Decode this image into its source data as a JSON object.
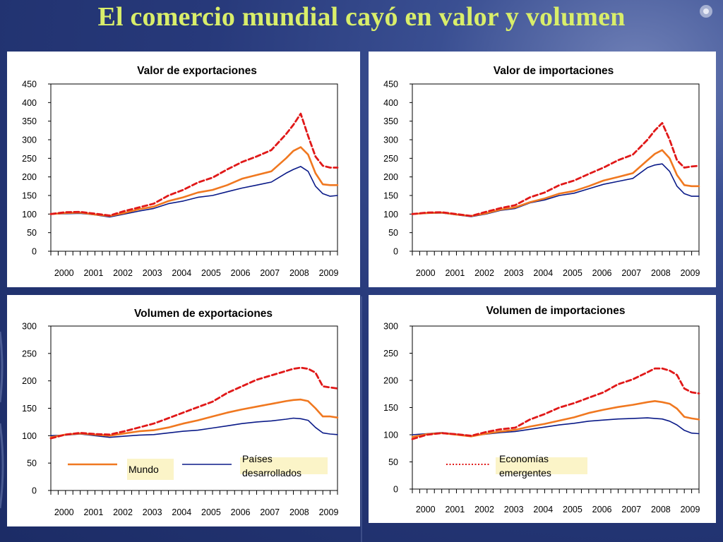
{
  "page": {
    "title": "El comercio mundial cayó en valor y volumen",
    "colors": {
      "background": "#27397a",
      "title": "#d9ee6a",
      "mundo": "#f07820",
      "desarrollados": "#0a1a88",
      "emergentes": "#e01818",
      "legend_box": "#fbf4c8"
    }
  },
  "legend": {
    "mundo": "Mundo",
    "desarrollados_1": "Países",
    "desarrollados_2": "desarrollados",
    "emergentes_1": "Economías",
    "emergentes_2": "emergentes"
  },
  "chart_data": [
    {
      "type": "line",
      "title": "Valor de exportaciones",
      "ylim": [
        0,
        450
      ],
      "yticks": [
        0,
        50,
        100,
        150,
        200,
        250,
        300,
        350,
        400,
        450
      ],
      "xticks": [
        "2000",
        "2001",
        "2002",
        "2003",
        "2004",
        "2005",
        "2006",
        "2007",
        "2008",
        "2009"
      ],
      "xrange": [
        2000.0,
        2009.75
      ],
      "grid": false,
      "series": [
        {
          "name": "Mundo",
          "x": [
            2000.0,
            2000.5,
            2001.0,
            2001.5,
            2002.0,
            2002.5,
            2003.0,
            2003.5,
            2004.0,
            2004.5,
            2005.0,
            2005.5,
            2006.0,
            2006.5,
            2007.0,
            2007.5,
            2008.0,
            2008.25,
            2008.5,
            2008.75,
            2009.0,
            2009.25,
            2009.5,
            2009.75
          ],
          "values": [
            100,
            103,
            104,
            99,
            95,
            103,
            113,
            120,
            135,
            145,
            158,
            165,
            178,
            195,
            205,
            215,
            250,
            270,
            280,
            260,
            210,
            180,
            178,
            178
          ]
        },
        {
          "name": "Países desarrollados",
          "x": [
            2000.0,
            2000.5,
            2001.0,
            2001.5,
            2002.0,
            2002.5,
            2003.0,
            2003.5,
            2004.0,
            2004.5,
            2005.0,
            2005.5,
            2006.0,
            2006.5,
            2007.0,
            2007.5,
            2008.0,
            2008.25,
            2008.5,
            2008.75,
            2009.0,
            2009.25,
            2009.5,
            2009.75
          ],
          "values": [
            100,
            101,
            102,
            98,
            92,
            100,
            108,
            115,
            128,
            135,
            145,
            150,
            160,
            170,
            178,
            186,
            210,
            220,
            228,
            215,
            175,
            155,
            148,
            150
          ]
        },
        {
          "name": "Economías emergentes",
          "x": [
            2000.0,
            2000.5,
            2001.0,
            2001.5,
            2002.0,
            2002.5,
            2003.0,
            2003.5,
            2004.0,
            2004.5,
            2005.0,
            2005.5,
            2006.0,
            2006.5,
            2007.0,
            2007.5,
            2008.0,
            2008.25,
            2008.5,
            2008.75,
            2009.0,
            2009.25,
            2009.5,
            2009.75
          ],
          "values": [
            100,
            105,
            106,
            101,
            96,
            108,
            118,
            128,
            150,
            165,
            185,
            198,
            220,
            240,
            255,
            272,
            315,
            340,
            370,
            310,
            255,
            230,
            225,
            225
          ]
        }
      ]
    },
    {
      "type": "line",
      "title": "Valor de importaciones",
      "ylim": [
        0,
        450
      ],
      "yticks": [
        0,
        50,
        100,
        150,
        200,
        250,
        300,
        350,
        400,
        450
      ],
      "xticks": [
        "2000",
        "2001",
        "2002",
        "2003",
        "2004",
        "2005",
        "2006",
        "2007",
        "2008",
        "2009"
      ],
      "xrange": [
        2000.0,
        2009.75
      ],
      "grid": false,
      "series": [
        {
          "name": "Mundo",
          "x": [
            2000.0,
            2000.5,
            2001.0,
            2001.5,
            2002.0,
            2002.5,
            2003.0,
            2003.5,
            2004.0,
            2004.5,
            2005.0,
            2005.5,
            2006.0,
            2006.5,
            2007.0,
            2007.5,
            2008.0,
            2008.25,
            2008.5,
            2008.75,
            2009.0,
            2009.25,
            2009.5,
            2009.75
          ],
          "values": [
            100,
            103,
            104,
            99,
            95,
            102,
            112,
            118,
            132,
            142,
            155,
            162,
            175,
            190,
            200,
            210,
            245,
            262,
            272,
            250,
            205,
            178,
            175,
            175
          ]
        },
        {
          "name": "Países desarrollados",
          "x": [
            2000.0,
            2000.5,
            2001.0,
            2001.5,
            2002.0,
            2002.5,
            2003.0,
            2003.5,
            2004.0,
            2004.5,
            2005.0,
            2005.5,
            2006.0,
            2006.5,
            2007.0,
            2007.5,
            2008.0,
            2008.25,
            2008.5,
            2008.75,
            2009.0,
            2009.25,
            2009.5,
            2009.75
          ],
          "values": [
            100,
            102,
            103,
            98,
            93,
            100,
            110,
            115,
            130,
            138,
            150,
            156,
            168,
            180,
            188,
            196,
            225,
            232,
            235,
            215,
            175,
            155,
            148,
            148
          ]
        },
        {
          "name": "Economías emergentes",
          "x": [
            2000.0,
            2000.5,
            2001.0,
            2001.5,
            2002.0,
            2002.5,
            2003.0,
            2003.5,
            2004.0,
            2004.5,
            2005.0,
            2005.5,
            2006.0,
            2006.5,
            2007.0,
            2007.5,
            2008.0,
            2008.25,
            2008.5,
            2008.75,
            2009.0,
            2009.25,
            2009.5,
            2009.75
          ],
          "values": [
            100,
            104,
            105,
            100,
            95,
            106,
            116,
            124,
            145,
            158,
            178,
            190,
            208,
            225,
            245,
            260,
            300,
            325,
            345,
            300,
            245,
            225,
            228,
            230
          ]
        }
      ]
    },
    {
      "type": "line",
      "title": "Volumen de exportaciones",
      "ylim": [
        0,
        300
      ],
      "yticks": [
        0,
        50,
        100,
        150,
        200,
        250,
        300
      ],
      "xticks": [
        "2000",
        "2001",
        "2002",
        "2003",
        "2004",
        "2005",
        "2006",
        "2007",
        "2008",
        "2009"
      ],
      "xrange": [
        2000.0,
        2009.75
      ],
      "grid": false,
      "series": [
        {
          "name": "Mundo",
          "x": [
            2000.0,
            2000.5,
            2001.0,
            2001.5,
            2002.0,
            2002.5,
            2003.0,
            2003.5,
            2004.0,
            2004.5,
            2005.0,
            2005.5,
            2006.0,
            2006.5,
            2007.0,
            2007.5,
            2008.0,
            2008.25,
            2008.5,
            2008.75,
            2009.0,
            2009.25,
            2009.5,
            2009.75
          ],
          "values": [
            97,
            102,
            104,
            102,
            100,
            104,
            108,
            110,
            115,
            122,
            128,
            135,
            142,
            148,
            153,
            158,
            163,
            165,
            166,
            163,
            150,
            135,
            135,
            133
          ]
        },
        {
          "name": "Países desarrollados",
          "x": [
            2000.0,
            2000.5,
            2001.0,
            2001.5,
            2002.0,
            2002.5,
            2003.0,
            2003.5,
            2004.0,
            2004.5,
            2005.0,
            2005.5,
            2006.0,
            2006.5,
            2007.0,
            2007.5,
            2008.0,
            2008.25,
            2008.5,
            2008.75,
            2009.0,
            2009.25,
            2009.5,
            2009.75
          ],
          "values": [
            100,
            101,
            103,
            100,
            97,
            99,
            101,
            102,
            105,
            108,
            110,
            114,
            118,
            122,
            125,
            127,
            130,
            132,
            131,
            128,
            115,
            105,
            103,
            102
          ]
        },
        {
          "name": "Economías emergentes",
          "x": [
            2000.0,
            2000.5,
            2001.0,
            2001.5,
            2002.0,
            2002.5,
            2003.0,
            2003.5,
            2004.0,
            2004.5,
            2005.0,
            2005.5,
            2006.0,
            2006.5,
            2007.0,
            2007.5,
            2008.0,
            2008.25,
            2008.5,
            2008.75,
            2009.0,
            2009.25,
            2009.5,
            2009.75
          ],
          "values": [
            95,
            102,
            105,
            103,
            102,
            108,
            115,
            122,
            132,
            142,
            152,
            162,
            178,
            190,
            202,
            210,
            218,
            222,
            224,
            222,
            215,
            190,
            188,
            186
          ]
        }
      ]
    },
    {
      "type": "line",
      "title": "Volumen de importaciones",
      "ylim": [
        0,
        300
      ],
      "yticks": [
        0,
        50,
        100,
        150,
        200,
        250,
        300
      ],
      "xticks": [
        "2000",
        "2001",
        "2002",
        "2003",
        "2004",
        "2005",
        "2006",
        "2007",
        "2008",
        "2009"
      ],
      "xrange": [
        2000.0,
        2009.75
      ],
      "grid": false,
      "series": [
        {
          "name": "Mundo",
          "x": [
            2000.0,
            2000.5,
            2001.0,
            2001.5,
            2002.0,
            2002.5,
            2003.0,
            2003.5,
            2004.0,
            2004.5,
            2005.0,
            2005.5,
            2006.0,
            2006.5,
            2007.0,
            2007.5,
            2008.0,
            2008.25,
            2008.5,
            2008.75,
            2009.0,
            2009.25,
            2009.5,
            2009.75
          ],
          "values": [
            96,
            101,
            103,
            100,
            97,
            102,
            106,
            109,
            115,
            120,
            126,
            132,
            140,
            146,
            151,
            155,
            160,
            162,
            160,
            157,
            148,
            133,
            130,
            128
          ]
        },
        {
          "name": "Países desarrollados",
          "x": [
            2000.0,
            2000.5,
            2001.0,
            2001.5,
            2002.0,
            2002.5,
            2003.0,
            2003.5,
            2004.0,
            2004.5,
            2005.0,
            2005.5,
            2006.0,
            2006.5,
            2007.0,
            2007.5,
            2008.0,
            2008.25,
            2008.5,
            2008.75,
            2009.0,
            2009.25,
            2009.5,
            2009.75
          ],
          "values": [
            100,
            102,
            104,
            101,
            98,
            101,
            104,
            106,
            110,
            114,
            118,
            121,
            125,
            127,
            129,
            130,
            131,
            130,
            129,
            125,
            118,
            108,
            103,
            102
          ]
        },
        {
          "name": "Economías emergentes",
          "x": [
            2000.0,
            2000.5,
            2001.0,
            2001.5,
            2002.0,
            2002.5,
            2003.0,
            2003.5,
            2004.0,
            2004.5,
            2005.0,
            2005.5,
            2006.0,
            2006.5,
            2007.0,
            2007.5,
            2008.0,
            2008.25,
            2008.5,
            2008.75,
            2009.0,
            2009.25,
            2009.5,
            2009.75
          ],
          "values": [
            92,
            100,
            103,
            101,
            98,
            105,
            110,
            113,
            128,
            138,
            150,
            158,
            168,
            178,
            193,
            202,
            215,
            222,
            222,
            218,
            210,
            185,
            178,
            176
          ]
        }
      ]
    }
  ]
}
